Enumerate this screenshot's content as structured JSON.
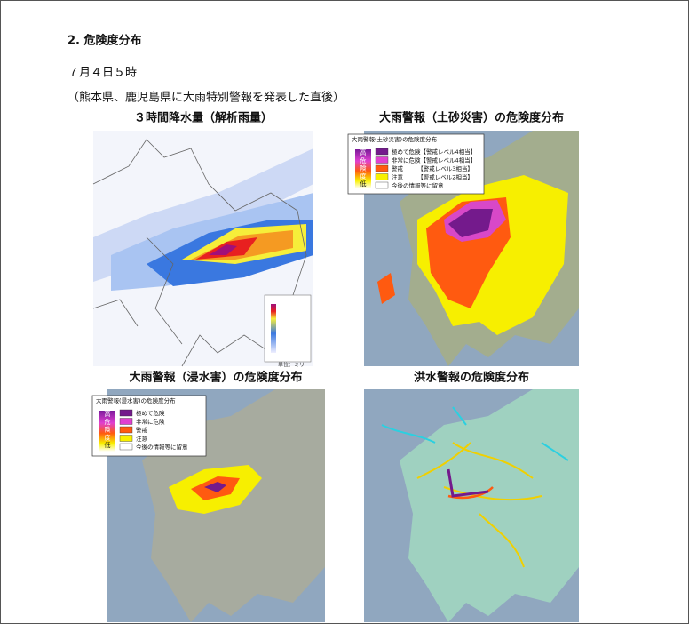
{
  "header": {
    "title": "2. 危険度分布",
    "date": "７月４日５時",
    "subtitle": "（熊本県、鹿児島県に大雨特別警報を発表した直後）"
  },
  "maps": [
    {
      "title": "３時間降水量（解析雨量）",
      "unit": "単位：ミリ"
    },
    {
      "title": "大雨警報（土砂災害）の危険度分布",
      "legend": {
        "title": "大雨警報(土砂災害)の危険度分布",
        "scale": [
          "高",
          "危",
          "険",
          "度",
          "低"
        ],
        "items": [
          "極めて危険【警戒レベル4相当】",
          "非常に危険【警戒レベル4相当】",
          "警戒　　　【警戒レベル3相当】",
          "注意　　　【警戒レベル2相当】",
          "今後の情報等に留意"
        ]
      }
    },
    {
      "title": "大雨警報（浸水害）の危険度分布",
      "legend": {
        "title": "大雨警報(浸水害)の危険度分布",
        "scale": [
          "高",
          "危",
          "険",
          "度",
          "低"
        ],
        "items": [
          "極めて危険",
          "非常に危険",
          "警戒",
          "注意",
          "今後の情報等に留意"
        ]
      }
    },
    {
      "title": "洪水警報の危険度分布"
    }
  ]
}
